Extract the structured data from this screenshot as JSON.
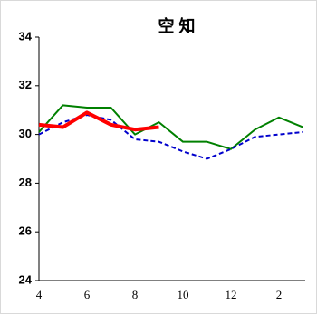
{
  "chart_data": {
    "type": "line",
    "title": "空 知",
    "categories": [
      4,
      null,
      6,
      null,
      8,
      null,
      10,
      null,
      12,
      null,
      2,
      null
    ],
    "series": [
      {
        "color": "#008000",
        "style": "solid",
        "values": [
          30.1,
          31.2,
          31.1,
          31.1,
          30.0,
          30.5,
          29.7,
          29.7,
          29.4,
          30.2,
          30.7,
          30.3
        ]
      },
      {
        "color": "#0000cc",
        "style": "dashed",
        "values": [
          30.0,
          30.5,
          30.8,
          30.6,
          29.8,
          29.7,
          29.3,
          29.0,
          29.4,
          29.9,
          30.0,
          30.1
        ]
      },
      {
        "color": "#ff0000",
        "style": "thick",
        "values": [
          30.4,
          30.3,
          30.9,
          30.4,
          30.2,
          30.3,
          null,
          null,
          null,
          null,
          null,
          null
        ]
      }
    ],
    "ylim": [
      24,
      34
    ],
    "yticks": [
      24,
      26,
      28,
      30,
      32,
      34
    ],
    "grid": false
  }
}
